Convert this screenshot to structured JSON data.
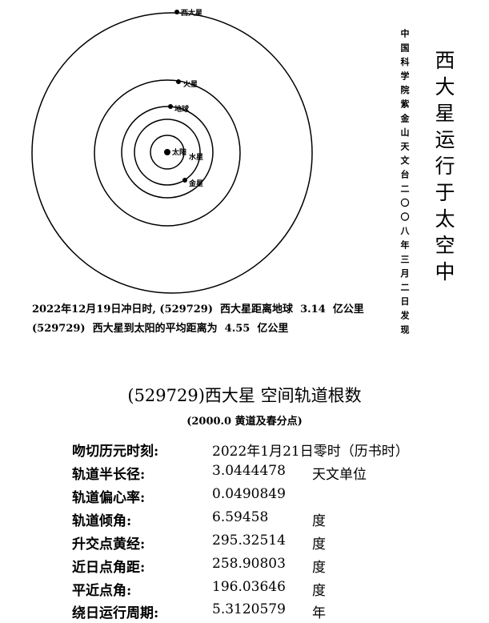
{
  "diagram": {
    "bodies": [
      {
        "name": "西大星"
      },
      {
        "name": "火星"
      },
      {
        "name": "地球"
      },
      {
        "name": "太阳"
      },
      {
        "name": "水星"
      },
      {
        "name": "金星"
      }
    ]
  },
  "vertical": {
    "organization": "中国科学院紫金山天文台二〇〇八年三月二日发现",
    "title": "西大星运行于太空中"
  },
  "notes": [
    "2022年12月19日冲日时, (529729)  西大星距离地球  3.14  亿公里",
    "(529729)  西大星到太阳的平均距离为  4.55  亿公里"
  ],
  "elements": {
    "title": "(529729)西大星 空间轨道根数",
    "subtitle": "(2000.0 黄道及春分点)",
    "rows": [
      {
        "label": "吻切历元时刻:",
        "value": "2022年1月21日零时（历书时）",
        "unit": ""
      },
      {
        "label": "轨道半长径:",
        "value": "3.0444478",
        "unit": "天文单位"
      },
      {
        "label": "轨道偏心率:",
        "value": "0.0490849",
        "unit": ""
      },
      {
        "label": "轨道倾角:",
        "value": "6.59458",
        "unit": "度"
      },
      {
        "label": "升交点黄经:",
        "value": "295.32514",
        "unit": "度"
      },
      {
        "label": "近日点角距:",
        "value": "258.90803",
        "unit": "度"
      },
      {
        "label": "平近点角:",
        "value": "196.03646",
        "unit": "度"
      },
      {
        "label": "绕日运行周期:",
        "value": "5.3120579",
        "unit": "年"
      }
    ]
  }
}
